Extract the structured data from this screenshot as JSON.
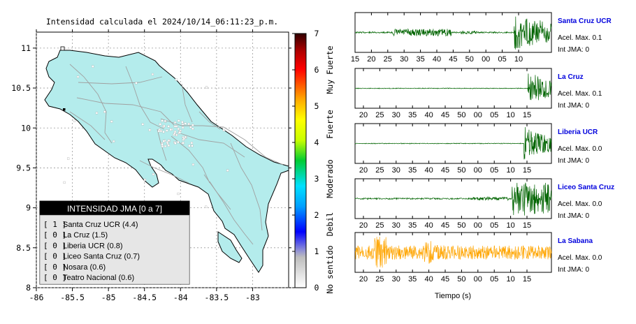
{
  "title": "Intensidad calculada el 2024/10/14_06:11:23_p.m.",
  "colors": {
    "sea": "#ffffff",
    "land": "#b4ecec",
    "border": "#000000",
    "roads": "#a0a0a0",
    "trace_green": "#006400",
    "trace_orange": "#ffa500",
    "station_name": "#0000dd"
  },
  "chart_data": [
    {
      "type": "heatmap",
      "title": "Intensidad calculada el 2024/10/14_06:11:23_p.m.",
      "x_ticks": [
        "-86",
        "-85.5",
        "-85",
        "-84.5",
        "-84",
        "-83.5",
        "-83"
      ],
      "y_ticks": [
        "8",
        "8.5",
        "9",
        "9.5",
        "10",
        "10.5",
        "11"
      ],
      "xlim": [
        -86,
        -82.5
      ],
      "ylim": [
        8,
        11.2
      ],
      "grid": true,
      "colorbar": {
        "ticks": [
          "0",
          "1",
          "2",
          "3",
          "4",
          "5",
          "6",
          "7"
        ],
        "range": [
          0,
          7
        ],
        "labels": [
          "No sentido",
          "Debil",
          "Moderado",
          "Fuerte",
          "Muy Fuerte"
        ]
      },
      "legend": {
        "title": "INTENSIDAD JMA [0 a 7]",
        "placement": "bottom-left",
        "items": [
          {
            "mark": "[ 1 ]",
            "text": "Santa Cruz UCR (4.4)"
          },
          {
            "mark": "[ 0 ]",
            "text": "La Cruz (1.5)"
          },
          {
            "mark": "[ 0 ]",
            "text": "Liberia UCR (0.8)"
          },
          {
            "mark": "[ 0 ]",
            "text": "Liceo Santa Cruz (0.7)"
          },
          {
            "mark": "[ 0 ]",
            "text": "Nosara (0.6)"
          },
          {
            "mark": "[ 0 ]",
            "text": "Teatro Nacional (0.6)"
          }
        ]
      }
    },
    {
      "type": "line",
      "xlabel": "Tiempo (s)",
      "stations": [
        {
          "name": "Santa Cruz UCR",
          "accel": "Acel. Max. 0.1",
          "int": "Int JMA: 0",
          "ticks": [
            "15",
            "20",
            "25",
            "30",
            "35",
            "40",
            "45",
            "50",
            "00",
            "05",
            "10"
          ],
          "color": "#006400",
          "quiet": 0.02,
          "bursts": [
            {
              "from": 0.19,
              "to": 0.49,
              "amp": 0.1
            },
            {
              "from": 0.53,
              "to": 0.62,
              "amp": 0.04
            }
          ],
          "onset": 0.81,
          "peak": 0.5,
          "tail": 0.3
        },
        {
          "name": "La Cruz",
          "accel": "Acel. Max. 0.1",
          "int": "Int JMA: 0",
          "ticks": [
            "20",
            "25",
            "30",
            "35",
            "40",
            "45",
            "50",
            "00",
            "05",
            "10",
            "15"
          ],
          "color": "#006400",
          "quiet": 0.01,
          "bursts": [],
          "onset": 0.88,
          "peak": 0.5,
          "tail": 0.25
        },
        {
          "name": "Liberia UCR",
          "accel": "Acel. Max. 0.0",
          "int": "Int JMA: 0",
          "ticks": [
            "20",
            "25",
            "30",
            "35",
            "40",
            "45",
            "50",
            "00",
            "05",
            "10",
            "15"
          ],
          "color": "#006400",
          "quiet": 0.01,
          "bursts": [],
          "onset": 0.86,
          "peak": 0.5,
          "tail": 0.2
        },
        {
          "name": "Liceo Santa Cruz",
          "accel": "Acel. Max. 0.0",
          "int": "Int JMA: 0",
          "ticks": [
            "20",
            "25",
            "30",
            "35",
            "40",
            "45",
            "50",
            "00",
            "05",
            "10",
            "15"
          ],
          "color": "#006400",
          "quiet": 0.02,
          "bursts": [
            {
              "from": 0.6,
              "to": 0.78,
              "amp": 0.05
            }
          ],
          "onset": 0.8,
          "peak": 0.5,
          "tail": 0.45
        },
        {
          "name": "La Sabana",
          "accel": "Acel. Max. 0.0",
          "int": "Int JMA: 0",
          "ticks": [
            "20",
            "25",
            "30",
            "35",
            "40",
            "45",
            "50",
            "00",
            "05",
            "10",
            "15"
          ],
          "color": "#ffa500",
          "quiet": 0.2,
          "bursts": [
            {
              "from": 0.1,
              "to": 0.16,
              "amp": 0.45
            },
            {
              "from": 0.34,
              "to": 0.4,
              "amp": 0.32
            }
          ],
          "onset": null,
          "peak": 0,
          "tail": 0
        }
      ]
    }
  ]
}
